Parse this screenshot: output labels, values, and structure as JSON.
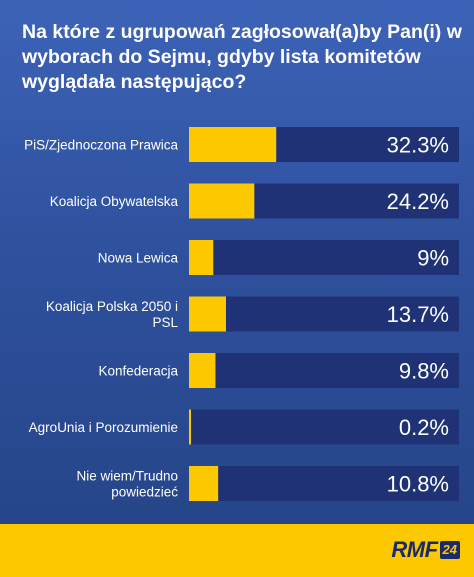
{
  "title": "Na które z ugrupowań zagłosował(a)by Pan(i) w wyborach do Sejmu, gdyby lista komitetów wyglądała następująco?",
  "brand": {
    "name": "RMF",
    "badge": "24"
  },
  "colors": {
    "bar_fill": "#fcc800",
    "bar_track": "#1f3275",
    "background": "#2f529f",
    "footer": "#fcc800"
  },
  "chart_data": {
    "type": "bar",
    "orientation": "horizontal",
    "title": "Na które z ugrupowań zagłosował(a)by Pan(i) w wyborach do Sejmu, gdyby lista komitetów wyglądała następująco?",
    "categories": [
      "PiS/Zjednoczona Prawica",
      "Koalicja Obywatelska",
      "Nowa Lewica",
      "Koalicja Polska 2050 i PSL",
      "Konfederacja",
      "AgroUnia i Porozumienie",
      "Nie wiem/Trudno powiedzieć"
    ],
    "category_lines": [
      [
        "PiS/Zjednoczona Prawica"
      ],
      [
        "Koalicja Obywatelska"
      ],
      [
        "Nowa Lewica"
      ],
      [
        "Koalicja Polska 2050 i",
        "PSL"
      ],
      [
        "Konfederacja"
      ],
      [
        "AgroUnia i Porozumienie"
      ],
      [
        "Nie wiem/Trudno",
        "powiedzieć"
      ]
    ],
    "values": [
      32.3,
      24.2,
      9,
      13.7,
      9.8,
      0.2,
      10.8
    ],
    "value_labels": [
      "32.3%",
      "24.2%",
      "9%",
      "13.7%",
      "9.8%",
      "0.2%",
      "10.8%"
    ],
    "xlim": [
      0,
      100
    ],
    "xlabel": "",
    "ylabel": "",
    "grid": false,
    "legend": "none"
  }
}
